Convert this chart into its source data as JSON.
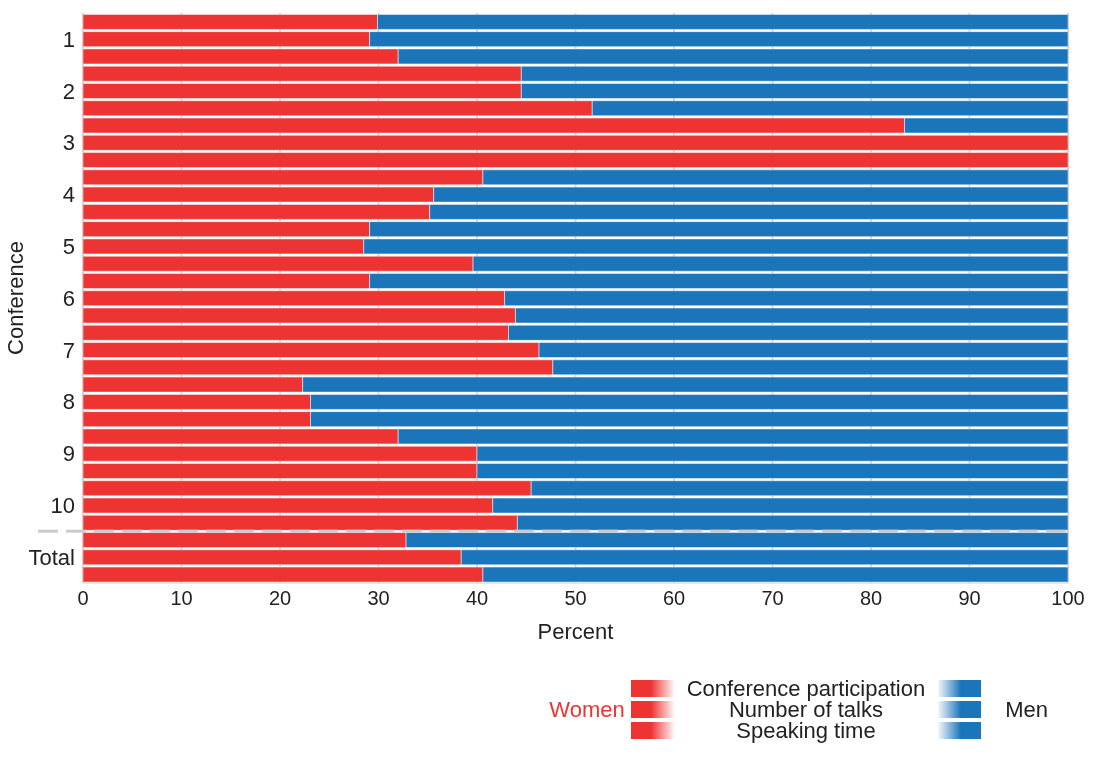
{
  "chart_data": {
    "type": "bar",
    "orientation": "horizontal",
    "stacked": true,
    "categories": [
      null,
      "1",
      null,
      null,
      "2",
      null,
      null,
      "3",
      null,
      null,
      "4",
      null,
      null,
      "5",
      null,
      null,
      "6",
      null,
      null,
      "7",
      null,
      null,
      "8",
      null,
      null,
      "9",
      null,
      null,
      "10",
      null,
      null,
      "Total",
      null
    ],
    "series": [
      {
        "name": "Women",
        "color": "#ee3333",
        "values": [
          29.9,
          29.1,
          32.0,
          44.5,
          44.5,
          51.7,
          83.4,
          100,
          100,
          40.6,
          35.6,
          35.2,
          29.1,
          28.5,
          39.6,
          29.1,
          42.8,
          43.9,
          43.2,
          46.3,
          47.7,
          22.3,
          23.1,
          23.1,
          32.0,
          40.0,
          40.0,
          45.5,
          41.6,
          44.1,
          32.8,
          38.4,
          40.6
        ]
      },
      {
        "name": "Men",
        "color": "#1b75bb",
        "values": [
          70.1,
          70.9,
          68.0,
          55.5,
          55.5,
          48.3,
          16.6,
          0,
          0,
          59.4,
          64.4,
          64.8,
          70.9,
          71.5,
          60.4,
          70.9,
          57.2,
          56.1,
          56.8,
          53.7,
          52.3,
          77.7,
          76.9,
          76.9,
          68.0,
          60.0,
          60.0,
          54.5,
          58.4,
          55.9,
          67.2,
          61.6,
          59.4
        ]
      }
    ],
    "xlim": [
      0,
      100
    ],
    "xticks": [
      0,
      10,
      20,
      30,
      40,
      50,
      60,
      70,
      80,
      90,
      100
    ],
    "xlabel": "Percent",
    "ylabel": "Conference",
    "grid": "x",
    "legend": "bottom right",
    "annotations": [
      "Conference participation",
      "Number of talks",
      "Speaking time"
    ]
  }
}
